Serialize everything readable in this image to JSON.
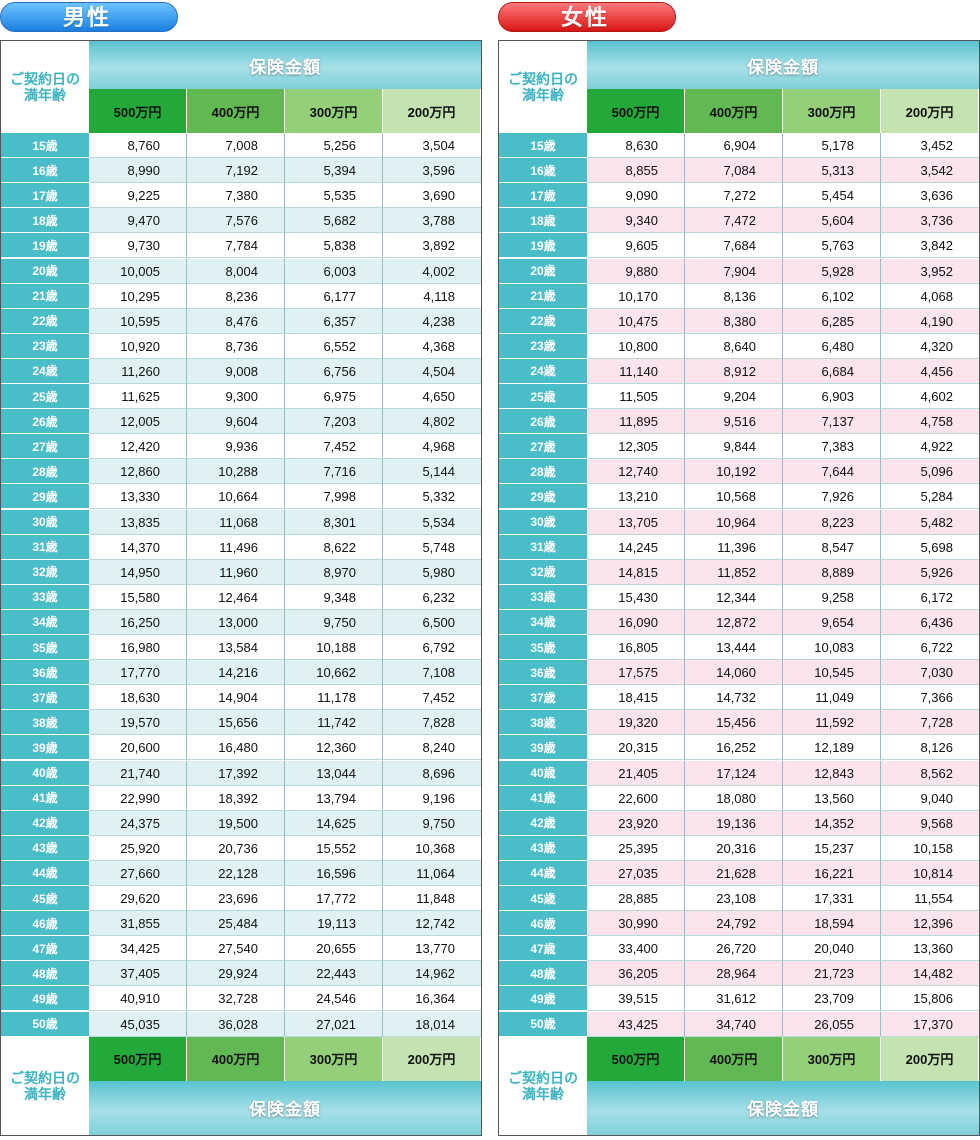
{
  "amount_headers": [
    "500万円",
    "400万円",
    "300万円",
    "200万円"
  ],
  "band_label": "保険金額",
  "corner_label": "ご契約日の\n満年齢",
  "male": {
    "title": "男性",
    "rows": [
      [
        "15歳",
        "8,760",
        "7,008",
        "5,256",
        "3,504"
      ],
      [
        "16歳",
        "8,990",
        "7,192",
        "5,394",
        "3,596"
      ],
      [
        "17歳",
        "9,225",
        "7,380",
        "5,535",
        "3,690"
      ],
      [
        "18歳",
        "9,470",
        "7,576",
        "5,682",
        "3,788"
      ],
      [
        "19歳",
        "9,730",
        "7,784",
        "5,838",
        "3,892"
      ],
      [
        "20歳",
        "10,005",
        "8,004",
        "6,003",
        "4,002"
      ],
      [
        "21歳",
        "10,295",
        "8,236",
        "6,177",
        "4,118"
      ],
      [
        "22歳",
        "10,595",
        "8,476",
        "6,357",
        "4,238"
      ],
      [
        "23歳",
        "10,920",
        "8,736",
        "6,552",
        "4,368"
      ],
      [
        "24歳",
        "11,260",
        "9,008",
        "6,756",
        "4,504"
      ],
      [
        "25歳",
        "11,625",
        "9,300",
        "6,975",
        "4,650"
      ],
      [
        "26歳",
        "12,005",
        "9,604",
        "7,203",
        "4,802"
      ],
      [
        "27歳",
        "12,420",
        "9,936",
        "7,452",
        "4,968"
      ],
      [
        "28歳",
        "12,860",
        "10,288",
        "7,716",
        "5,144"
      ],
      [
        "29歳",
        "13,330",
        "10,664",
        "7,998",
        "5,332"
      ],
      [
        "30歳",
        "13,835",
        "11,068",
        "8,301",
        "5,534"
      ],
      [
        "31歳",
        "14,370",
        "11,496",
        "8,622",
        "5,748"
      ],
      [
        "32歳",
        "14,950",
        "11,960",
        "8,970",
        "5,980"
      ],
      [
        "33歳",
        "15,580",
        "12,464",
        "9,348",
        "6,232"
      ],
      [
        "34歳",
        "16,250",
        "13,000",
        "9,750",
        "6,500"
      ],
      [
        "35歳",
        "16,980",
        "13,584",
        "10,188",
        "6,792"
      ],
      [
        "36歳",
        "17,770",
        "14,216",
        "10,662",
        "7,108"
      ],
      [
        "37歳",
        "18,630",
        "14,904",
        "11,178",
        "7,452"
      ],
      [
        "38歳",
        "19,570",
        "15,656",
        "11,742",
        "7,828"
      ],
      [
        "39歳",
        "20,600",
        "16,480",
        "12,360",
        "8,240"
      ],
      [
        "40歳",
        "21,740",
        "17,392",
        "13,044",
        "8,696"
      ],
      [
        "41歳",
        "22,990",
        "18,392",
        "13,794",
        "9,196"
      ],
      [
        "42歳",
        "24,375",
        "19,500",
        "14,625",
        "9,750"
      ],
      [
        "43歳",
        "25,920",
        "20,736",
        "15,552",
        "10,368"
      ],
      [
        "44歳",
        "27,660",
        "22,128",
        "16,596",
        "11,064"
      ],
      [
        "45歳",
        "29,620",
        "23,696",
        "17,772",
        "11,848"
      ],
      [
        "46歳",
        "31,855",
        "25,484",
        "19,113",
        "12,742"
      ],
      [
        "47歳",
        "34,425",
        "27,540",
        "20,655",
        "13,770"
      ],
      [
        "48歳",
        "37,405",
        "29,924",
        "22,443",
        "14,962"
      ],
      [
        "49歳",
        "40,910",
        "32,728",
        "24,546",
        "16,364"
      ],
      [
        "50歳",
        "45,035",
        "36,028",
        "27,021",
        "18,014"
      ]
    ]
  },
  "female": {
    "title": "女性",
    "rows": [
      [
        "15歳",
        "8,630",
        "6,904",
        "5,178",
        "3,452"
      ],
      [
        "16歳",
        "8,855",
        "7,084",
        "5,313",
        "3,542"
      ],
      [
        "17歳",
        "9,090",
        "7,272",
        "5,454",
        "3,636"
      ],
      [
        "18歳",
        "9,340",
        "7,472",
        "5,604",
        "3,736"
      ],
      [
        "19歳",
        "9,605",
        "7,684",
        "5,763",
        "3,842"
      ],
      [
        "20歳",
        "9,880",
        "7,904",
        "5,928",
        "3,952"
      ],
      [
        "21歳",
        "10,170",
        "8,136",
        "6,102",
        "4,068"
      ],
      [
        "22歳",
        "10,475",
        "8,380",
        "6,285",
        "4,190"
      ],
      [
        "23歳",
        "10,800",
        "8,640",
        "6,480",
        "4,320"
      ],
      [
        "24歳",
        "11,140",
        "8,912",
        "6,684",
        "4,456"
      ],
      [
        "25歳",
        "11,505",
        "9,204",
        "6,903",
        "4,602"
      ],
      [
        "26歳",
        "11,895",
        "9,516",
        "7,137",
        "4,758"
      ],
      [
        "27歳",
        "12,305",
        "9,844",
        "7,383",
        "4,922"
      ],
      [
        "28歳",
        "12,740",
        "10,192",
        "7,644",
        "5,096"
      ],
      [
        "29歳",
        "13,210",
        "10,568",
        "7,926",
        "5,284"
      ],
      [
        "30歳",
        "13,705",
        "10,964",
        "8,223",
        "5,482"
      ],
      [
        "31歳",
        "14,245",
        "11,396",
        "8,547",
        "5,698"
      ],
      [
        "32歳",
        "14,815",
        "11,852",
        "8,889",
        "5,926"
      ],
      [
        "33歳",
        "15,430",
        "12,344",
        "9,258",
        "6,172"
      ],
      [
        "34歳",
        "16,090",
        "12,872",
        "9,654",
        "6,436"
      ],
      [
        "35歳",
        "16,805",
        "13,444",
        "10,083",
        "6,722"
      ],
      [
        "36歳",
        "17,575",
        "14,060",
        "10,545",
        "7,030"
      ],
      [
        "37歳",
        "18,415",
        "14,732",
        "11,049",
        "7,366"
      ],
      [
        "38歳",
        "19,320",
        "15,456",
        "11,592",
        "7,728"
      ],
      [
        "39歳",
        "20,315",
        "16,252",
        "12,189",
        "8,126"
      ],
      [
        "40歳",
        "21,405",
        "17,124",
        "12,843",
        "8,562"
      ],
      [
        "41歳",
        "22,600",
        "18,080",
        "13,560",
        "9,040"
      ],
      [
        "42歳",
        "23,920",
        "19,136",
        "14,352",
        "9,568"
      ],
      [
        "43歳",
        "25,395",
        "20,316",
        "15,237",
        "10,158"
      ],
      [
        "44歳",
        "27,035",
        "21,628",
        "16,221",
        "10,814"
      ],
      [
        "45歳",
        "28,885",
        "23,108",
        "17,331",
        "11,554"
      ],
      [
        "46歳",
        "30,990",
        "24,792",
        "18,594",
        "12,396"
      ],
      [
        "47歳",
        "33,400",
        "26,720",
        "20,040",
        "13,360"
      ],
      [
        "48歳",
        "36,205",
        "28,964",
        "21,723",
        "14,482"
      ],
      [
        "49歳",
        "39,515",
        "31,612",
        "23,709",
        "15,806"
      ],
      [
        "50歳",
        "43,425",
        "34,740",
        "26,055",
        "17,370"
      ]
    ]
  },
  "colors": {
    "male_title_gradient": [
      "#6cc4ff",
      "#1a7fe0"
    ],
    "female_title_gradient": [
      "#ff7a7a",
      "#d81515"
    ],
    "age_column": "#49bdc8",
    "male_stripe": "#dff1f3",
    "female_stripe": "#fbe4ec",
    "amount_header": [
      "#23a93a",
      "#62b852",
      "#94cf7a",
      "#c4e3b0"
    ]
  }
}
